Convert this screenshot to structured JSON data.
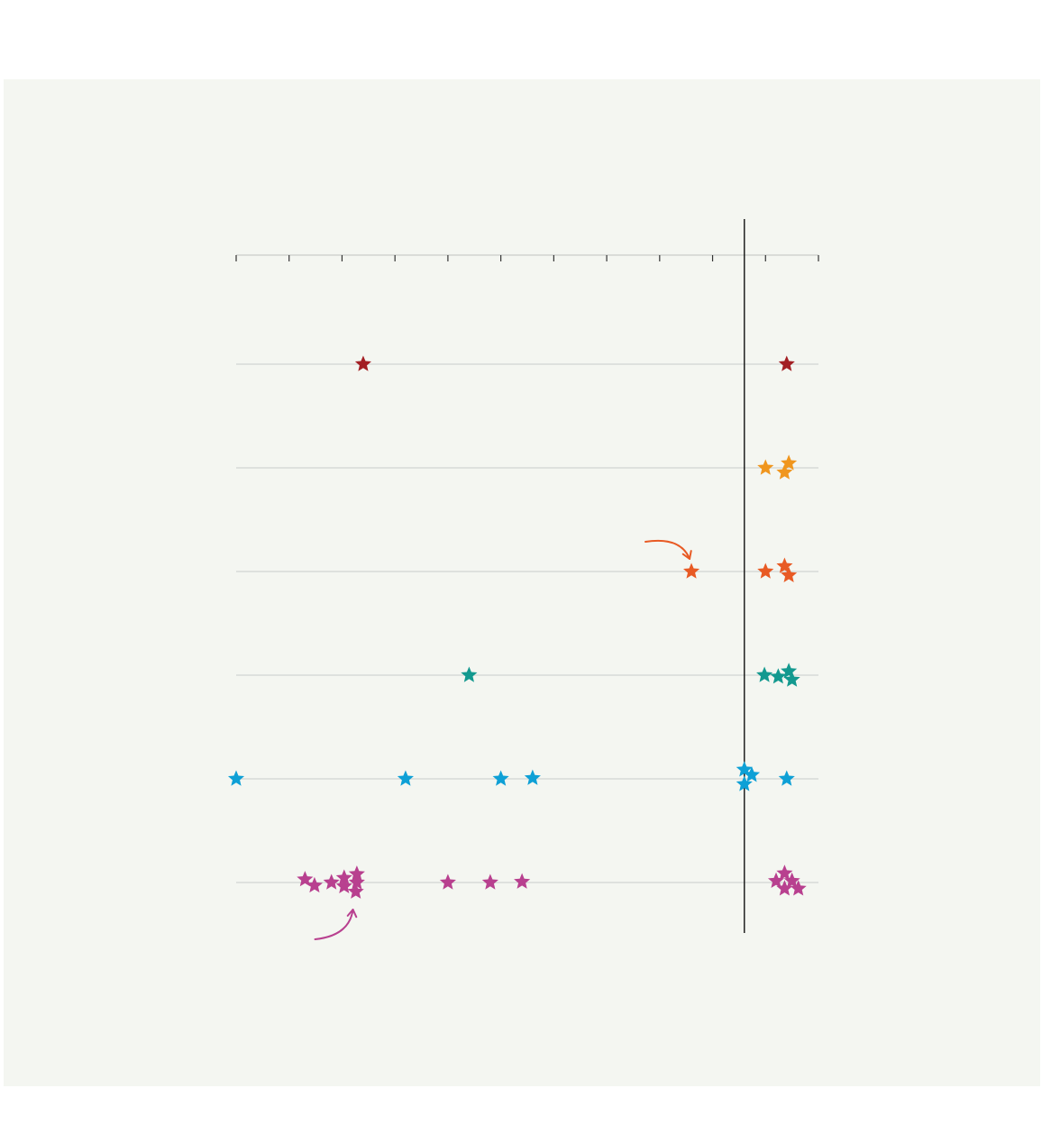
{
  "chart_data": {
    "type": "scatter",
    "title": "",
    "xlabel": "",
    "ylabel": "",
    "x_ticks": [
      -4.8,
      -4.3,
      -3.8,
      -3.3,
      -2.8,
      -2.3,
      -1.8,
      -1.3,
      -0.8,
      -0.3,
      0.2,
      0.7
    ],
    "xlim": [
      -4.8,
      0.7
    ],
    "reference_line_x": 0,
    "grid": "horizontal",
    "legend": "none",
    "annotations": [
      {
        "type": "arrow",
        "series": 2,
        "color": "#e85a24"
      },
      {
        "type": "arrow",
        "series": 5,
        "color": "#b8408f"
      }
    ],
    "series": [
      {
        "color": "#a31f24",
        "points": [
          {
            "x": -3.6,
            "jitter": 0.0
          },
          {
            "x": 0.4,
            "jitter": 0.0
          }
        ]
      },
      {
        "color": "#f0961e",
        "points": [
          {
            "x": 0.2,
            "jitter": 0.0
          },
          {
            "x": 0.42,
            "jitter": -0.6
          },
          {
            "x": 0.38,
            "jitter": 0.6
          }
        ]
      },
      {
        "color": "#e85a24",
        "points": [
          {
            "x": -0.5,
            "jitter": 0.0
          },
          {
            "x": 0.2,
            "jitter": 0.0
          },
          {
            "x": 0.38,
            "jitter": -0.7
          },
          {
            "x": 0.42,
            "jitter": 0.5
          }
        ]
      },
      {
        "color": "#13998f",
        "points": [
          {
            "x": -2.6,
            "jitter": 0.0
          },
          {
            "x": 0.19,
            "jitter": 0.0
          },
          {
            "x": 0.32,
            "jitter": 0.2
          },
          {
            "x": 0.42,
            "jitter": -0.5
          },
          {
            "x": 0.45,
            "jitter": 0.6
          }
        ]
      },
      {
        "color": "#0ea0d6",
        "points": [
          {
            "x": -4.8,
            "jitter": 0.0
          },
          {
            "x": -3.2,
            "jitter": 0.0
          },
          {
            "x": -2.3,
            "jitter": 0.0
          },
          {
            "x": -2.0,
            "jitter": -0.1
          },
          {
            "x": 0.0,
            "jitter": -1.2
          },
          {
            "x": 0.07,
            "jitter": -0.5
          },
          {
            "x": 0.0,
            "jitter": 0.7
          },
          {
            "x": 0.4,
            "jitter": 0.0
          }
        ]
      },
      {
        "color": "#b8408f",
        "points": [
          {
            "x": -4.15,
            "jitter": -0.4
          },
          {
            "x": -4.06,
            "jitter": 0.4
          },
          {
            "x": -3.9,
            "jitter": 0.0
          },
          {
            "x": -3.78,
            "jitter": -0.6
          },
          {
            "x": -3.78,
            "jitter": 0.5
          },
          {
            "x": -3.66,
            "jitter": -1.1
          },
          {
            "x": -3.66,
            "jitter": 0.0
          },
          {
            "x": -3.67,
            "jitter": 1.2
          },
          {
            "x": -2.8,
            "jitter": 0.0
          },
          {
            "x": -2.4,
            "jitter": 0.0
          },
          {
            "x": -2.1,
            "jitter": -0.1
          },
          {
            "x": 0.3,
            "jitter": -0.2
          },
          {
            "x": 0.38,
            "jitter": -1.2
          },
          {
            "x": 0.38,
            "jitter": 0.8
          },
          {
            "x": 0.45,
            "jitter": -0.2
          },
          {
            "x": 0.51,
            "jitter": 0.8
          }
        ]
      }
    ]
  }
}
